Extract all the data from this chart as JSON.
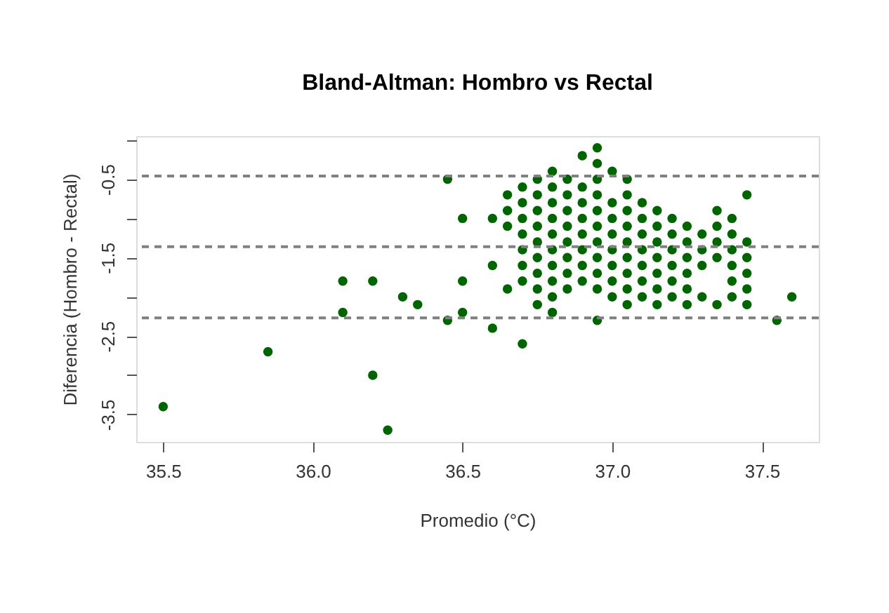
{
  "chart_data": {
    "type": "scatter",
    "title": "Bland-Altman: Hombro vs Rectal",
    "xlabel": "Promedio (°C)",
    "ylabel": "Diferencia (Hombro - Rectal)",
    "xlim": [
      35.41,
      37.69
    ],
    "ylim": [
      -3.85,
      0.05
    ],
    "xticks": [
      35.5,
      {
        "value": 36,
        "label": "36.0"
      },
      36.5,
      {
        "value": 37,
        "label": "37.0"
      },
      37.5
    ],
    "yticks": [
      {
        "value": 0,
        "label": null
      },
      -0.5,
      {
        "value": -1,
        "label": null
      },
      -1.5,
      {
        "value": -2,
        "label": null
      },
      -2.5,
      {
        "value": -3,
        "label": null
      },
      -3.5
    ],
    "grid": false,
    "marker": "circle",
    "series": [
      {
        "color": "#006400",
        "x": [
          35.5,
          35.85,
          36.1,
          36.1,
          36.2,
          36.2,
          36.25,
          36.3,
          36.35,
          36.45,
          36.45,
          36.5,
          36.5,
          36.5,
          36.6,
          36.6,
          36.6,
          36.65,
          36.65,
          36.65,
          36.65,
          36.7,
          36.7,
          36.7,
          36.7,
          36.7,
          36.7,
          36.7,
          36.7,
          36.75,
          36.75,
          36.75,
          36.75,
          36.75,
          36.75,
          36.75,
          36.75,
          36.75,
          36.8,
          36.8,
          36.8,
          36.8,
          36.8,
          36.8,
          36.8,
          36.8,
          36.8,
          36.8,
          36.85,
          36.85,
          36.85,
          36.85,
          36.85,
          36.85,
          36.85,
          36.85,
          36.9,
          36.9,
          36.9,
          36.9,
          36.9,
          36.9,
          36.9,
          36.9,
          36.95,
          36.95,
          36.95,
          36.95,
          36.95,
          36.95,
          36.95,
          36.95,
          36.95,
          36.95,
          36.95,
          37.0,
          37.0,
          37.0,
          37.0,
          37.0,
          37.0,
          37.0,
          37.0,
          37.05,
          37.05,
          37.05,
          37.05,
          37.05,
          37.05,
          37.05,
          37.05,
          37.05,
          37.1,
          37.1,
          37.1,
          37.1,
          37.1,
          37.1,
          37.1,
          37.15,
          37.15,
          37.15,
          37.15,
          37.15,
          37.15,
          37.15,
          37.2,
          37.2,
          37.2,
          37.2,
          37.2,
          37.2,
          37.25,
          37.25,
          37.25,
          37.25,
          37.25,
          37.25,
          37.3,
          37.3,
          37.3,
          37.3,
          37.35,
          37.35,
          37.35,
          37.35,
          37.35,
          37.4,
          37.4,
          37.4,
          37.4,
          37.4,
          37.4,
          37.45,
          37.45,
          37.45,
          37.45,
          37.45,
          37.45,
          37.55,
          37.6
        ],
        "values": [
          -3.4,
          -2.7,
          -1.8,
          -2.2,
          -1.8,
          -3.0,
          -3.7,
          -2.0,
          -2.1,
          -0.5,
          -2.3,
          -1.0,
          -1.8,
          -2.2,
          -1.0,
          -1.6,
          -2.4,
          -0.7,
          -0.9,
          -1.1,
          -1.9,
          -0.6,
          -0.8,
          -1.0,
          -1.2,
          -1.4,
          -1.6,
          -1.8,
          -2.6,
          -0.5,
          -0.7,
          -0.9,
          -1.1,
          -1.3,
          -1.5,
          -1.7,
          -1.9,
          -2.1,
          -0.4,
          -0.6,
          -0.8,
          -1.0,
          -1.2,
          -1.4,
          -1.6,
          -1.8,
          -2.0,
          -2.2,
          -0.5,
          -0.7,
          -0.9,
          -1.1,
          -1.3,
          -1.5,
          -1.7,
          -1.9,
          -0.2,
          -0.6,
          -0.8,
          -1.0,
          -1.2,
          -1.4,
          -1.6,
          -1.8,
          -0.1,
          -0.5,
          -0.7,
          -0.9,
          -1.1,
          -1.3,
          -1.5,
          -1.7,
          -1.9,
          -2.3,
          -0.3,
          -0.4,
          -0.8,
          -1.0,
          -1.2,
          -1.4,
          -1.6,
          -1.8,
          -2.0,
          -0.5,
          -0.7,
          -0.9,
          -1.1,
          -1.3,
          -1.5,
          -1.7,
          -1.9,
          -2.1,
          -0.8,
          -1.0,
          -1.2,
          -1.4,
          -1.6,
          -1.8,
          -2.0,
          -0.9,
          -1.1,
          -1.3,
          -1.5,
          -1.7,
          -1.9,
          -2.1,
          -1.0,
          -1.2,
          -1.4,
          -1.6,
          -1.8,
          -2.0,
          -1.1,
          -1.3,
          -1.5,
          -1.7,
          -1.9,
          -2.1,
          -1.2,
          -1.4,
          -1.6,
          -2.0,
          -0.9,
          -1.1,
          -1.3,
          -1.5,
          -2.1,
          -1.0,
          -1.2,
          -1.4,
          -1.6,
          -1.8,
          -2.0,
          -0.7,
          -1.3,
          -1.5,
          -1.7,
          -1.9,
          -2.1,
          -2.3,
          -2.0
        ]
      }
    ],
    "ref_lines": [
      {
        "axis": "y",
        "value": -0.46,
        "color": "#808080",
        "line_style": "dashed"
      },
      {
        "axis": "y",
        "value": -1.36,
        "color": "#808080",
        "line_style": "dashed"
      },
      {
        "axis": "y",
        "value": -2.27,
        "color": "#808080",
        "line_style": "dashed"
      }
    ]
  }
}
